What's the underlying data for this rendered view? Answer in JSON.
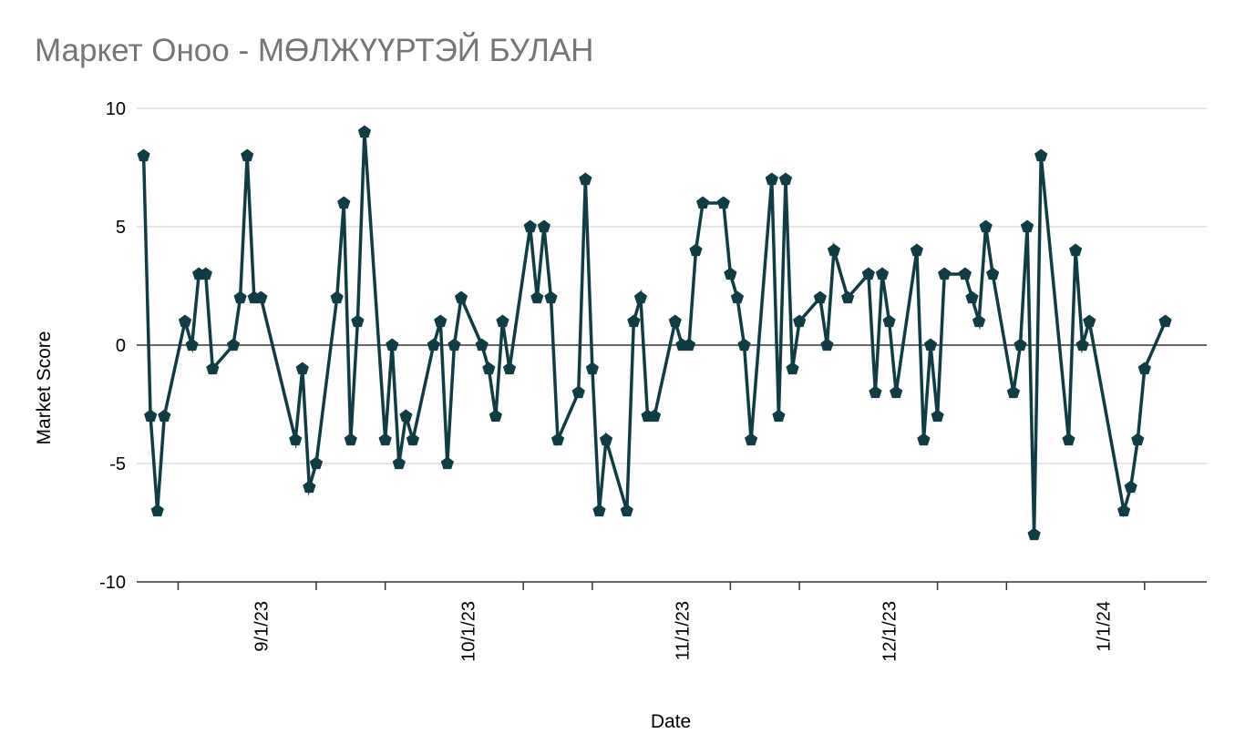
{
  "chart_data": {
    "type": "line",
    "title": "Маркет Оноо - МӨЛЖҮҮРТЭЙ БУЛАН",
    "xlabel": "Date",
    "ylabel": "Market Score",
    "ylim": [
      -10,
      10
    ],
    "yticks": [
      "10",
      "5",
      "0",
      "-5",
      "-10"
    ],
    "ytick_values": [
      10,
      5,
      0,
      -5,
      -10
    ],
    "xlim": [
      "2023-08-14",
      "2024-01-16"
    ],
    "xticks": [
      {
        "label": "9/1/23",
        "date": "2023-09-01"
      },
      {
        "label": "10/1/23",
        "date": "2023-10-01"
      },
      {
        "label": "11/1/23",
        "date": "2023-11-01"
      },
      {
        "label": "12/1/23",
        "date": "2023-12-01"
      },
      {
        "label": "1/1/24",
        "date": "2024-01-01"
      }
    ],
    "grid": true,
    "legend": "none",
    "series": [
      {
        "color": "#0f3d43",
        "marker": "pentagon",
        "points": [
          [
            "2023-08-15",
            8
          ],
          [
            "2023-08-16",
            -3
          ],
          [
            "2023-08-17",
            -7
          ],
          [
            "2023-08-18",
            -3
          ],
          [
            "2023-08-21",
            1
          ],
          [
            "2023-08-22",
            0
          ],
          [
            "2023-08-23",
            3
          ],
          [
            "2023-08-24",
            3
          ],
          [
            "2023-08-25",
            -1
          ],
          [
            "2023-08-28",
            0
          ],
          [
            "2023-08-29",
            2
          ],
          [
            "2023-08-30",
            8
          ],
          [
            "2023-08-31",
            2
          ],
          [
            "2023-09-01",
            2
          ],
          [
            "2023-09-06",
            -4
          ],
          [
            "2023-09-07",
            -1
          ],
          [
            "2023-09-08",
            -6
          ],
          [
            "2023-09-09",
            -5
          ],
          [
            "2023-09-12",
            2
          ],
          [
            "2023-09-13",
            6
          ],
          [
            "2023-09-14",
            -4
          ],
          [
            "2023-09-15",
            1
          ],
          [
            "2023-09-16",
            9
          ],
          [
            "2023-09-19",
            -4
          ],
          [
            "2023-09-20",
            0
          ],
          [
            "2023-09-21",
            -5
          ],
          [
            "2023-09-22",
            -3
          ],
          [
            "2023-09-23",
            -4
          ],
          [
            "2023-09-26",
            0
          ],
          [
            "2023-09-27",
            1
          ],
          [
            "2023-09-28",
            -5
          ],
          [
            "2023-09-29",
            0
          ],
          [
            "2023-09-30",
            2
          ],
          [
            "2023-10-03",
            0
          ],
          [
            "2023-10-04",
            -1
          ],
          [
            "2023-10-05",
            -3
          ],
          [
            "2023-10-06",
            1
          ],
          [
            "2023-10-07",
            -1
          ],
          [
            "2023-10-10",
            5
          ],
          [
            "2023-10-11",
            2
          ],
          [
            "2023-10-12",
            5
          ],
          [
            "2023-10-13",
            2
          ],
          [
            "2023-10-14",
            -4
          ],
          [
            "2023-10-17",
            -2
          ],
          [
            "2023-10-18",
            7
          ],
          [
            "2023-10-19",
            -1
          ],
          [
            "2023-10-20",
            -7
          ],
          [
            "2023-10-21",
            -4
          ],
          [
            "2023-10-24",
            -7
          ],
          [
            "2023-10-25",
            1
          ],
          [
            "2023-10-26",
            2
          ],
          [
            "2023-10-27",
            -3
          ],
          [
            "2023-10-28",
            -3
          ],
          [
            "2023-10-31",
            1
          ],
          [
            "2023-11-01",
            0
          ],
          [
            "2023-11-02",
            0
          ],
          [
            "2023-11-03",
            4
          ],
          [
            "2023-11-04",
            6
          ],
          [
            "2023-11-07",
            6
          ],
          [
            "2023-11-08",
            3
          ],
          [
            "2023-11-09",
            2
          ],
          [
            "2023-11-10",
            0
          ],
          [
            "2023-11-11",
            -4
          ],
          [
            "2023-11-14",
            7
          ],
          [
            "2023-11-15",
            -3
          ],
          [
            "2023-11-16",
            7
          ],
          [
            "2023-11-17",
            -1
          ],
          [
            "2023-11-18",
            1
          ],
          [
            "2023-11-21",
            2
          ],
          [
            "2023-11-22",
            0
          ],
          [
            "2023-11-23",
            4
          ],
          [
            "2023-11-25",
            2
          ],
          [
            "2023-11-28",
            3
          ],
          [
            "2023-11-29",
            -2
          ],
          [
            "2023-11-30",
            3
          ],
          [
            "2023-12-01",
            1
          ],
          [
            "2023-12-02",
            -2
          ],
          [
            "2023-12-05",
            4
          ],
          [
            "2023-12-06",
            -4
          ],
          [
            "2023-12-07",
            0
          ],
          [
            "2023-12-08",
            -3
          ],
          [
            "2023-12-09",
            3
          ],
          [
            "2023-12-12",
            3
          ],
          [
            "2023-12-13",
            2
          ],
          [
            "2023-12-14",
            1
          ],
          [
            "2023-12-15",
            5
          ],
          [
            "2023-12-16",
            3
          ],
          [
            "2023-12-19",
            -2
          ],
          [
            "2023-12-20",
            0
          ],
          [
            "2023-12-21",
            5
          ],
          [
            "2023-12-22",
            -8
          ],
          [
            "2023-12-23",
            8
          ],
          [
            "2023-12-27",
            -4
          ],
          [
            "2023-12-28",
            4
          ],
          [
            "2023-12-29",
            0
          ],
          [
            "2023-12-30",
            1
          ],
          [
            "2024-01-04",
            -7
          ],
          [
            "2024-01-05",
            -6
          ],
          [
            "2024-01-06",
            -4
          ],
          [
            "2024-01-07",
            -1
          ],
          [
            "2024-01-10",
            1
          ]
        ]
      }
    ]
  }
}
